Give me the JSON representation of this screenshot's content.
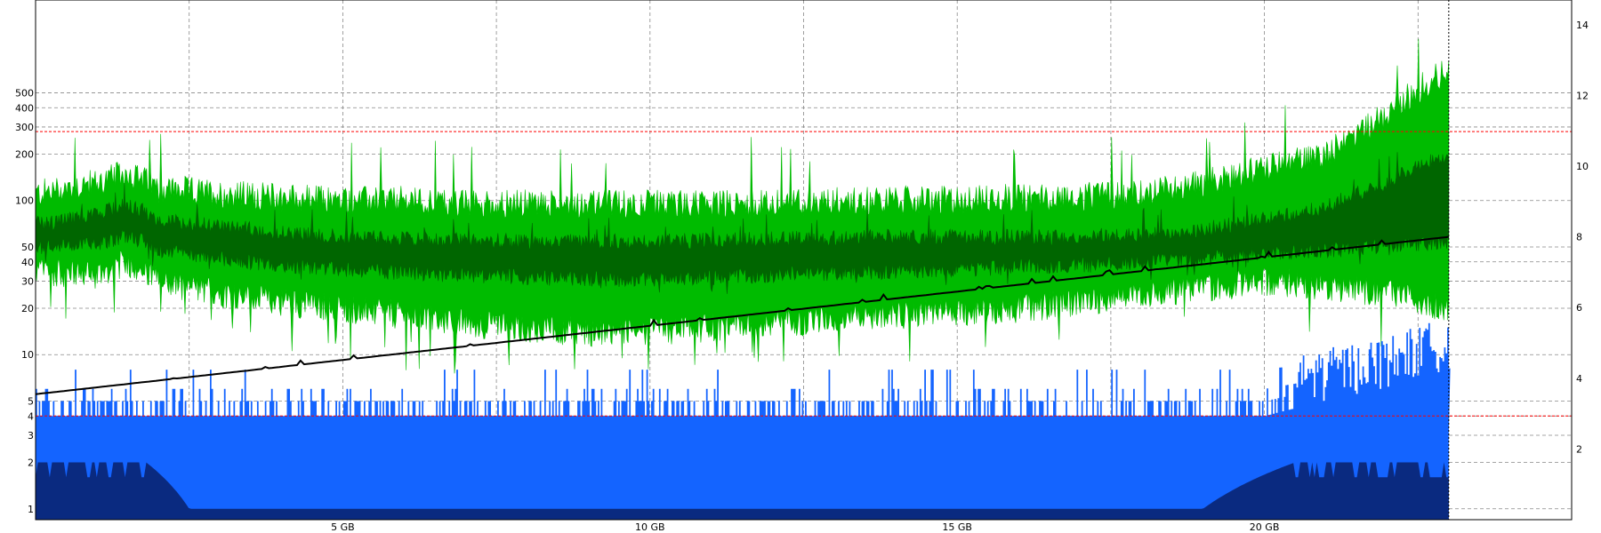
{
  "chart_data": {
    "type": "area",
    "title": "",
    "x_axis": {
      "unit": "GB",
      "range": [
        0,
        25
      ],
      "ticks": [
        5,
        10,
        15,
        20
      ],
      "tick_labels": [
        "5 GB",
        "10 GB",
        "15 GB",
        "20 GB"
      ],
      "data_end": 23,
      "grid_every": 2.5
    },
    "y_left": {
      "scale": "log",
      "range": [
        0.85,
        2000
      ],
      "ticks": [
        1,
        2,
        3,
        4,
        5,
        10,
        20,
        30,
        40,
        50,
        100,
        200,
        300,
        400,
        500
      ],
      "tick_labels": [
        "1",
        "2",
        "3",
        "4",
        "5",
        "10",
        "20",
        "30",
        "40",
        "50",
        "100",
        "200",
        "300",
        "400",
        "500"
      ]
    },
    "y_right": {
      "scale": "linear",
      "range": [
        0,
        14.7
      ],
      "ticks": [
        2,
        4,
        6,
        8,
        10,
        12,
        14
      ],
      "tick_labels": [
        "2",
        "4",
        "6",
        "8",
        "10",
        "12",
        "14"
      ]
    },
    "reference_lines": [
      {
        "axis": "left",
        "value": 280,
        "color": "#ff0000"
      },
      {
        "axis": "left",
        "value": 4,
        "color": "#ff0000"
      }
    ],
    "series": [
      {
        "kind": "band",
        "axis": "left",
        "color": "#00bb00",
        "x": [
          0,
          1,
          1.5,
          2,
          3,
          4,
          5,
          6,
          7,
          8,
          9,
          10,
          11,
          12,
          13,
          14,
          15,
          16,
          17,
          18,
          19,
          20,
          21,
          22,
          23
        ],
        "upper": [
          110,
          130,
          150,
          120,
          110,
          105,
          100,
          100,
          95,
          95,
          95,
          95,
          95,
          95,
          100,
          100,
          100,
          105,
          105,
          110,
          130,
          160,
          200,
          350,
          700
        ],
        "lower": [
          35,
          33,
          40,
          30,
          25,
          22,
          20,
          18,
          16,
          15,
          14,
          14,
          15,
          16,
          17,
          18,
          19,
          20,
          22,
          25,
          27,
          30,
          28,
          25,
          20
        ]
      },
      {
        "kind": "band",
        "axis": "left",
        "color": "#006600",
        "x": [
          0,
          1,
          1.5,
          2,
          3,
          4,
          5,
          6,
          7,
          8,
          9,
          10,
          11,
          12,
          13,
          14,
          15,
          16,
          17,
          18,
          19,
          20,
          21,
          22,
          23
        ],
        "upper": [
          70,
          80,
          95,
          75,
          68,
          62,
          58,
          56,
          55,
          54,
          54,
          54,
          55,
          56,
          57,
          58,
          58,
          58,
          58,
          60,
          65,
          75,
          90,
          130,
          200
        ],
        "lower": [
          50,
          52,
          60,
          48,
          42,
          38,
          36,
          34,
          33,
          32,
          31,
          31,
          32,
          33,
          34,
          35,
          36,
          37,
          38,
          40,
          42,
          45,
          48,
          50,
          55
        ]
      },
      {
        "kind": "step",
        "axis": "left",
        "color": "#1464ff",
        "x": [
          0,
          1,
          2,
          3,
          4,
          5,
          6,
          7,
          8,
          9,
          10,
          11,
          12,
          13,
          14,
          15,
          16,
          17,
          18,
          19,
          20,
          21,
          22,
          23
        ],
        "values": [
          4,
          4,
          4,
          4,
          4,
          4,
          4,
          4,
          4,
          4,
          4,
          4,
          4,
          4,
          4,
          4,
          4,
          4,
          4,
          4,
          4,
          5,
          6,
          8
        ],
        "baseline": 3
      },
      {
        "kind": "area",
        "axis": "left",
        "color": "#0a2a80",
        "x": [
          0,
          1.8,
          2.5,
          19,
          20.5,
          21.5,
          23
        ],
        "upper": [
          2,
          2,
          1,
          1,
          2,
          2,
          2
        ]
      },
      {
        "kind": "line",
        "axis": "right",
        "color": "#000000",
        "x": [
          0,
          23
        ],
        "values": [
          3.55,
          8.0
        ]
      }
    ]
  }
}
